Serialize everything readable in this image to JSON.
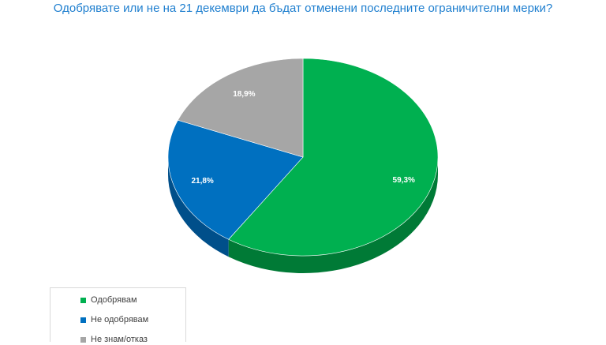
{
  "title": "Одобрявате или не на 21 декември да бъдат отменени последните ограничителни мерки?",
  "chart_data": {
    "type": "pie",
    "categories": [
      "Одобрявам",
      "Не одобрявам",
      "Не знам/отказ"
    ],
    "values": [
      59.3,
      21.8,
      18.9
    ],
    "labels": [
      "59,3%",
      "21,8%",
      "18,9%"
    ],
    "colors": [
      "#00b050",
      "#0070c0",
      "#a6a6a6"
    ],
    "side_colors": [
      "#007a36",
      "#004f8a",
      "#767676"
    ],
    "legend_position": "bottom-left",
    "style": "3d"
  }
}
